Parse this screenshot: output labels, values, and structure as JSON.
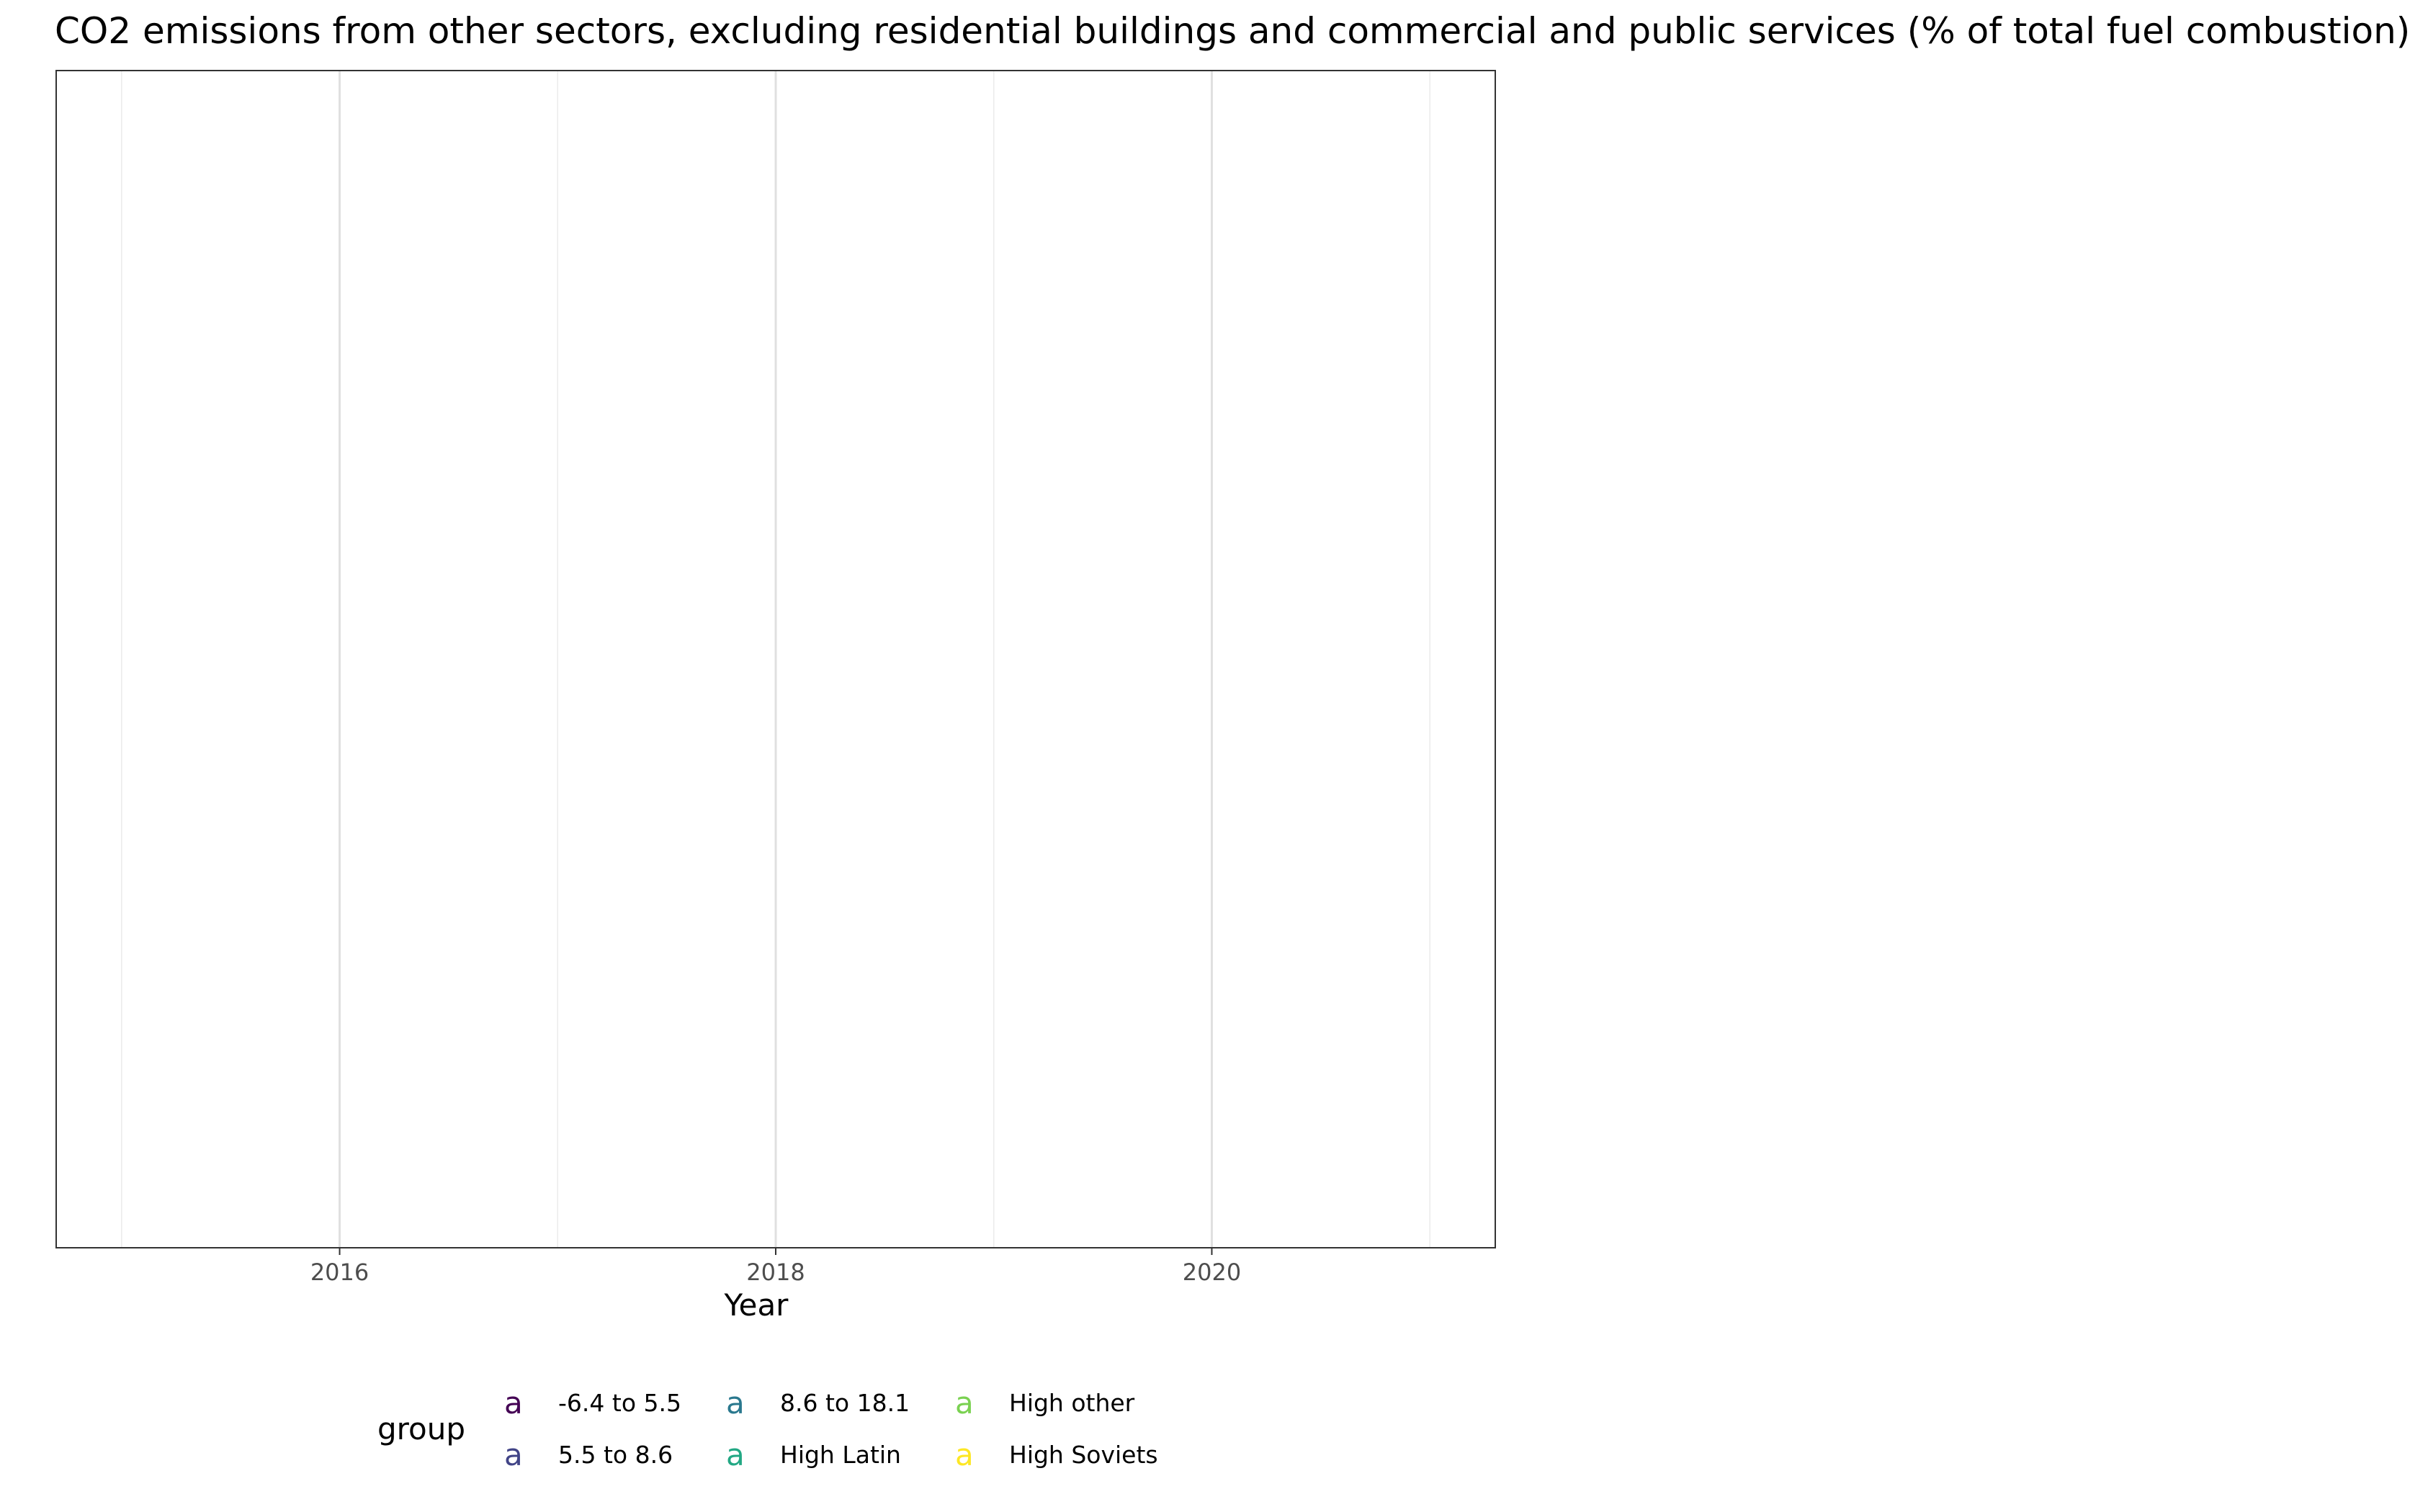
{
  "chart_data": {
    "type": "line",
    "title": "CO2 emissions from other sectors, excluding residential buildings and commercial and public services (% of total fuel combustion)",
    "xlabel": "Year",
    "ylabel": "",
    "xlim": [
      2014.7,
      2021.3
    ],
    "x_major_ticks": [
      2016,
      2018,
      2020
    ],
    "x_minor_gridlines": [
      2015,
      2017,
      2019,
      2021
    ],
    "tick_labels": [
      "2016",
      "2018",
      "2020"
    ],
    "grid": true,
    "legend_placement": "bottom",
    "legend_title": "group",
    "legend_key_glyph": "a",
    "legend_items": [
      {
        "label": "-6.4 to 5.5",
        "color": "#440154"
      },
      {
        "label": "5.5 to 8.6",
        "color": "#414487"
      },
      {
        "label": "8.6 to 18.1",
        "color": "#2A788E"
      },
      {
        "label": "High Latin",
        "color": "#22A884"
      },
      {
        "label": "High other",
        "color": "#7AD151"
      },
      {
        "label": "High Soviets",
        "color": "#FDE725"
      }
    ],
    "series": []
  }
}
